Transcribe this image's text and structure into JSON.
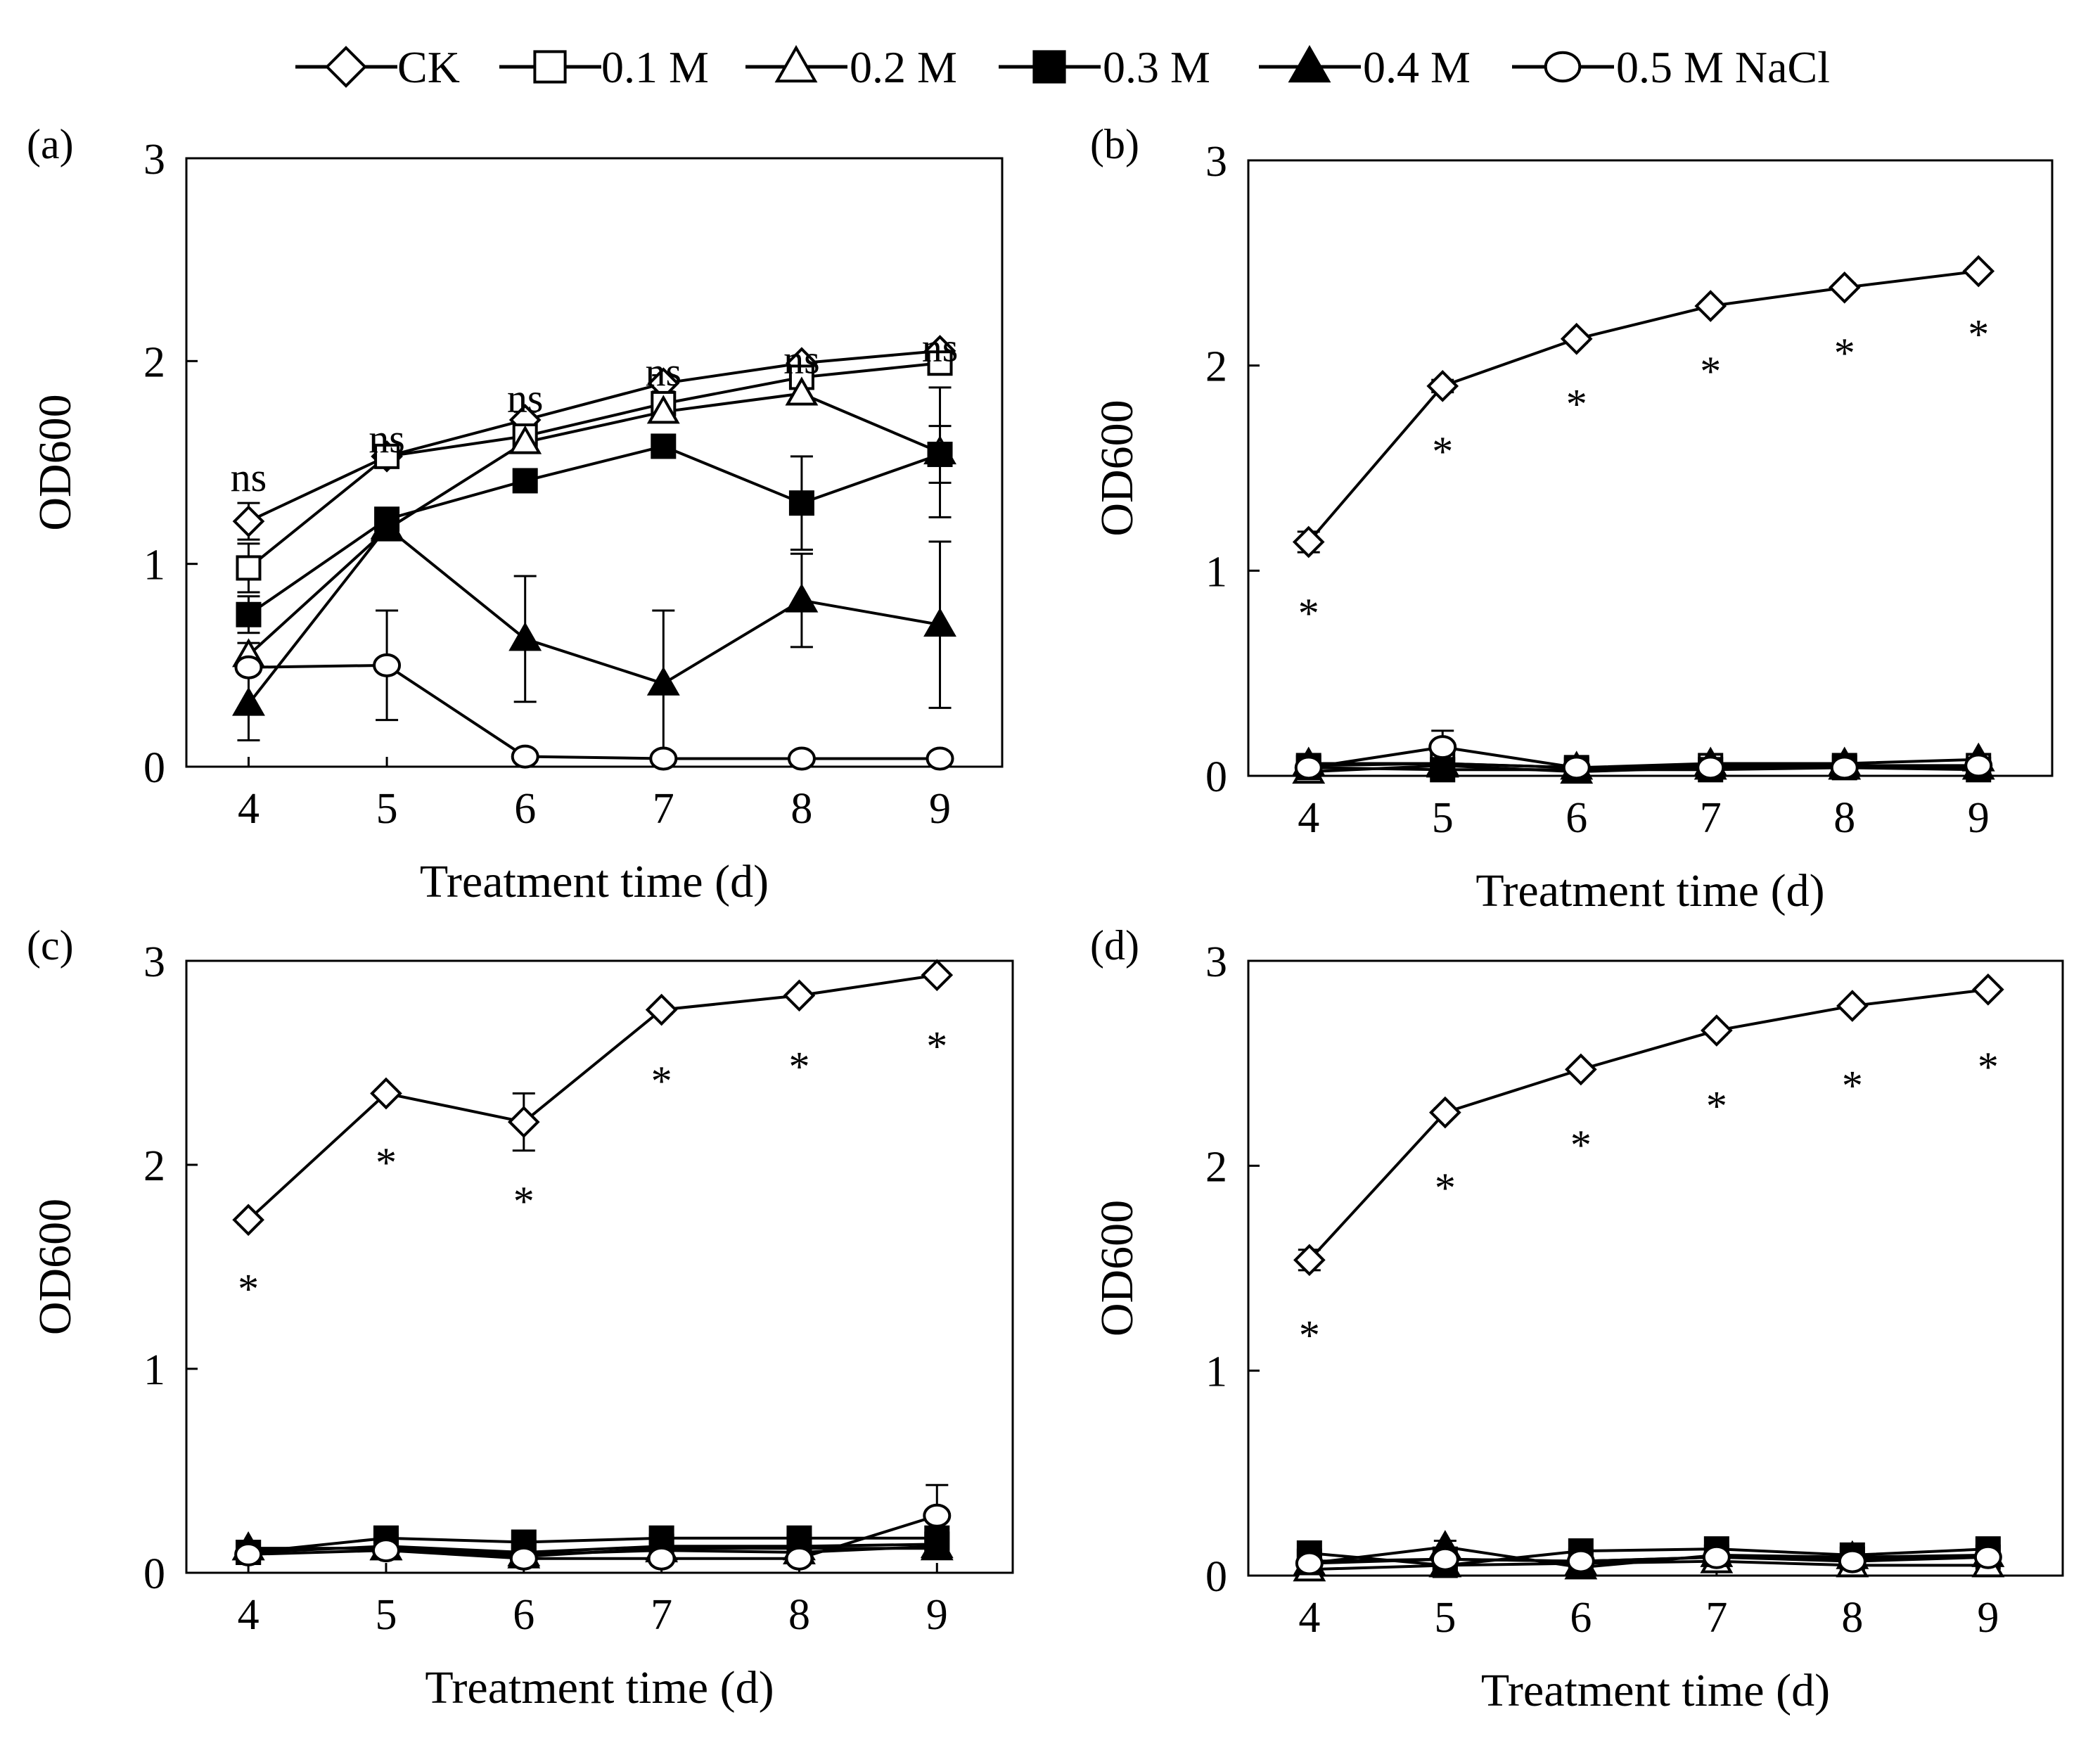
{
  "legend": {
    "entries": [
      {
        "label": "CK",
        "marker": "diamond-open"
      },
      {
        "label": "0.1 M",
        "marker": "square-open"
      },
      {
        "label": "0.2 M",
        "marker": "triangle-open"
      },
      {
        "label": "0.3 M",
        "marker": "square-filled"
      },
      {
        "label": "0.4 M",
        "marker": "triangle-filled"
      },
      {
        "label": "0.5 M NaCl",
        "marker": "circle-open"
      }
    ]
  },
  "chart_data": [
    {
      "panel": "(a)",
      "type": "line",
      "xlabel": "Treatment time (d)",
      "ylabel": "OD600",
      "x": [
        4,
        5,
        6,
        7,
        8,
        9
      ],
      "xlim": [
        3.55,
        9.45
      ],
      "ylim": [
        0,
        3
      ],
      "yticks": [
        0,
        1,
        2,
        3
      ],
      "annotation_values": [
        "ns",
        "ns",
        "ns",
        "ns",
        "ns",
        "ns"
      ],
      "annotation_y": [
        1.36,
        1.55,
        1.75,
        1.88,
        1.94,
        2.0
      ],
      "series": [
        {
          "name": "CK",
          "marker": "diamond-open",
          "values": [
            1.21,
            1.53,
            1.71,
            1.89,
            1.99,
            2.05
          ],
          "errors": [
            0.09,
            0.03,
            0.04,
            0.04,
            0.02,
            0.02
          ]
        },
        {
          "name": "0.1 M",
          "marker": "square-open",
          "values": [
            0.98,
            1.53,
            1.63,
            1.79,
            1.92,
            1.99
          ],
          "errors": [
            0.12,
            0.04,
            0.03,
            0.04,
            0.03,
            0.02
          ]
        },
        {
          "name": "0.2 M",
          "marker": "triangle-open",
          "values": [
            0.55,
            1.17,
            1.6,
            1.75,
            1.84,
            1.55
          ],
          "errors": [
            0.06,
            0.05,
            0.04,
            0.04,
            0.03,
            0.32
          ]
        },
        {
          "name": "0.3 M",
          "marker": "square-filled",
          "values": [
            0.75,
            1.22,
            1.41,
            1.58,
            1.3,
            1.54
          ],
          "errors": [
            0.09,
            0.02,
            0.02,
            0.02,
            0.23,
            0.14
          ]
        },
        {
          "name": "0.4 M",
          "marker": "triangle-filled",
          "values": [
            0.31,
            1.18,
            0.63,
            0.41,
            0.82,
            0.7
          ],
          "errors": [
            0.18,
            0.04,
            0.31,
            0.36,
            0.23,
            0.41
          ]
        },
        {
          "name": "0.5 M NaCl",
          "marker": "circle-open",
          "values": [
            0.49,
            0.5,
            0.05,
            0.04,
            0.04,
            0.04
          ],
          "errors": [
            0.02,
            0.27,
            0.0,
            0.0,
            0.0,
            0.0
          ]
        }
      ]
    },
    {
      "panel": "(b)",
      "type": "line",
      "xlabel": "Treatment time (d)",
      "ylabel": "OD600",
      "x": [
        4,
        5,
        6,
        7,
        8,
        9
      ],
      "xlim": [
        3.55,
        9.55
      ],
      "ylim": [
        0,
        3
      ],
      "yticks": [
        0,
        1,
        2,
        3
      ],
      "annotation_values": [
        "*",
        "*",
        "*",
        "*",
        "*",
        "*"
      ],
      "annotation_y": [
        0.86,
        1.65,
        1.88,
        2.04,
        2.13,
        2.22
      ],
      "series": [
        {
          "name": "CK",
          "marker": "diamond-open",
          "values": [
            1.14,
            1.9,
            2.13,
            2.29,
            2.38,
            2.46
          ],
          "errors": [
            0.05,
            0.03,
            0.02,
            0.02,
            0.02,
            0.02
          ]
        },
        {
          "name": "0.1 M",
          "marker": "square-open",
          "values": [
            0.05,
            0.06,
            0.04,
            0.05,
            0.05,
            0.05
          ],
          "errors": [
            0.01,
            0.01,
            0.01,
            0.01,
            0.01,
            0.01
          ]
        },
        {
          "name": "0.2 M",
          "marker": "triangle-open",
          "values": [
            0.02,
            0.05,
            0.02,
            0.04,
            0.04,
            0.04
          ],
          "errors": [
            0.01,
            0.01,
            0.01,
            0.01,
            0.01,
            0.01
          ]
        },
        {
          "name": "0.3 M",
          "marker": "square-filled",
          "values": [
            0.04,
            0.03,
            0.03,
            0.03,
            0.04,
            0.03
          ],
          "errors": [
            0.01,
            0.01,
            0.01,
            0.01,
            0.01,
            0.01
          ]
        },
        {
          "name": "0.4 M",
          "marker": "triangle-filled",
          "values": [
            0.06,
            0.06,
            0.04,
            0.06,
            0.06,
            0.08
          ],
          "errors": [
            0.01,
            0.01,
            0.01,
            0.01,
            0.01,
            0.02
          ]
        },
        {
          "name": "0.5 M NaCl",
          "marker": "circle-open",
          "values": [
            0.04,
            0.14,
            0.04,
            0.04,
            0.04,
            0.05
          ],
          "errors": [
            0.01,
            0.08,
            0.01,
            0.01,
            0.01,
            0.01
          ]
        }
      ]
    },
    {
      "panel": "(c)",
      "type": "line",
      "xlabel": "Treatment time (d)",
      "ylabel": "OD600",
      "x": [
        4,
        5,
        6,
        7,
        8,
        9
      ],
      "xlim": [
        3.55,
        9.55
      ],
      "ylim": [
        0,
        3
      ],
      "yticks": [
        0,
        1,
        2,
        3
      ],
      "annotation_values": [
        "*",
        "*",
        "*",
        "*",
        "*",
        "*"
      ],
      "annotation_y": [
        1.46,
        2.08,
        1.89,
        2.48,
        2.55,
        2.65
      ],
      "series": [
        {
          "name": "CK",
          "marker": "diamond-open",
          "values": [
            1.73,
            2.35,
            2.21,
            2.76,
            2.83,
            2.93
          ],
          "errors": [
            0.02,
            0.02,
            0.14,
            0.02,
            0.02,
            0.02
          ]
        },
        {
          "name": "0.1 M",
          "marker": "square-open",
          "values": [
            0.1,
            0.13,
            0.1,
            0.13,
            0.13,
            0.14
          ],
          "errors": [
            0.01,
            0.02,
            0.01,
            0.01,
            0.01,
            0.01
          ]
        },
        {
          "name": "0.2 M",
          "marker": "triangle-open",
          "values": [
            0.12,
            0.12,
            0.09,
            0.11,
            0.1,
            0.13
          ],
          "errors": [
            0.01,
            0.01,
            0.01,
            0.01,
            0.01,
            0.01
          ]
        },
        {
          "name": "0.3 M",
          "marker": "square-filled",
          "values": [
            0.1,
            0.17,
            0.15,
            0.17,
            0.17,
            0.17
          ],
          "errors": [
            0.01,
            0.02,
            0.01,
            0.01,
            0.01,
            0.01
          ]
        },
        {
          "name": "0.4 M",
          "marker": "triangle-filled",
          "values": [
            0.12,
            0.12,
            0.08,
            0.12,
            0.12,
            0.12
          ],
          "errors": [
            0.01,
            0.01,
            0.01,
            0.01,
            0.01,
            0.01
          ]
        },
        {
          "name": "0.5 M NaCl",
          "marker": "circle-open",
          "values": [
            0.09,
            0.11,
            0.07,
            0.07,
            0.07,
            0.28
          ],
          "errors": [
            0.01,
            0.01,
            0.01,
            0.01,
            0.01,
            0.15
          ]
        }
      ]
    },
    {
      "panel": "(d)",
      "type": "line",
      "xlabel": "Treatment time (d)",
      "ylabel": "OD600",
      "x": [
        4,
        5,
        6,
        7,
        8,
        9
      ],
      "xlim": [
        3.55,
        9.55
      ],
      "ylim": [
        0,
        3
      ],
      "yticks": [
        0,
        1,
        2,
        3
      ],
      "annotation_values": [
        "*",
        "*",
        "*",
        "*",
        "*",
        "*"
      ],
      "annotation_y": [
        1.24,
        1.96,
        2.17,
        2.36,
        2.46,
        2.55
      ],
      "series": [
        {
          "name": "CK",
          "marker": "diamond-open",
          "values": [
            1.54,
            2.26,
            2.47,
            2.66,
            2.78,
            2.86
          ],
          "errors": [
            0.05,
            0.02,
            0.02,
            0.02,
            0.02,
            0.02
          ]
        },
        {
          "name": "0.1 M",
          "marker": "square-open",
          "values": [
            0.07,
            0.08,
            0.07,
            0.09,
            0.08,
            0.09
          ],
          "errors": [
            0.01,
            0.01,
            0.01,
            0.01,
            0.01,
            0.01
          ]
        },
        {
          "name": "0.2 M",
          "marker": "triangle-open",
          "values": [
            0.03,
            0.05,
            0.06,
            0.07,
            0.05,
            0.05
          ],
          "errors": [
            0.01,
            0.01,
            0.01,
            0.01,
            0.01,
            0.01
          ]
        },
        {
          "name": "0.3 M",
          "marker": "square-filled",
          "values": [
            0.11,
            0.05,
            0.12,
            0.13,
            0.1,
            0.13
          ],
          "errors": [
            0.01,
            0.01,
            0.01,
            0.01,
            0.01,
            0.01
          ]
        },
        {
          "name": "0.4 M",
          "marker": "triangle-filled",
          "values": [
            0.06,
            0.14,
            0.04,
            0.1,
            0.09,
            0.1
          ],
          "errors": [
            0.01,
            0.03,
            0.01,
            0.01,
            0.01,
            0.01
          ]
        },
        {
          "name": "0.5 M NaCl",
          "marker": "circle-open",
          "values": [
            0.06,
            0.08,
            0.07,
            0.09,
            0.07,
            0.09
          ],
          "errors": [
            0.01,
            0.01,
            0.01,
            0.01,
            0.01,
            0.01
          ]
        }
      ]
    }
  ]
}
